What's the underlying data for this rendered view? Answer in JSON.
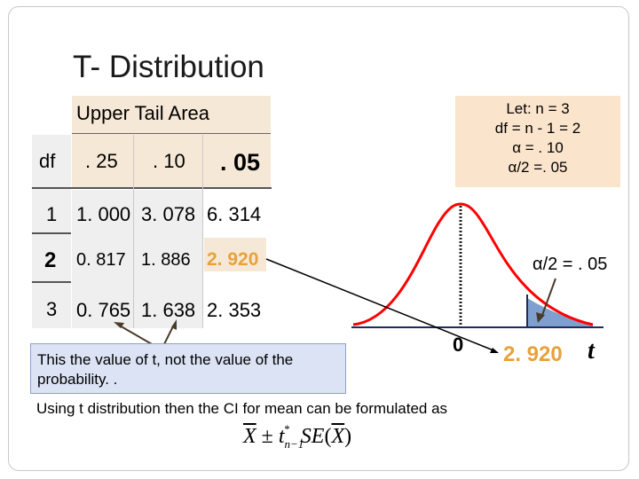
{
  "title": "T- Distribution",
  "table": {
    "header": "Upper Tail Area",
    "df_label": "df",
    "columns": [
      ". 25",
      ". 10",
      ". 05"
    ],
    "rows": [
      {
        "df": "1",
        "values": [
          "1. 000",
          "3. 078",
          "6. 314"
        ]
      },
      {
        "df": "2",
        "values": [
          "0. 817",
          "1. 886",
          "2. 920"
        ]
      },
      {
        "df": "3",
        "values": [
          "0. 765",
          "1. 638",
          "2. 353"
        ]
      }
    ]
  },
  "note": {
    "line1": "Let: n = 3",
    "line2": "df = n - 1 = 2",
    "line3": "α = . 10",
    "line4": "α/2 =. 05"
  },
  "graph": {
    "tail_label": "α/2 = . 05",
    "zero_label": "0",
    "critical_label": "2. 920",
    "t_label": "t"
  },
  "callout": {
    "text": "This the value of t, not the value of the probability. ."
  },
  "footer": "Using t distribution then the CI for mean can be formulated as",
  "colors": {
    "curve": "#ff0000",
    "highlight": "#f6e8d6",
    "shade": "#7f9fce",
    "critical": "#e6a23c",
    "axis": "#1f2d5a"
  }
}
